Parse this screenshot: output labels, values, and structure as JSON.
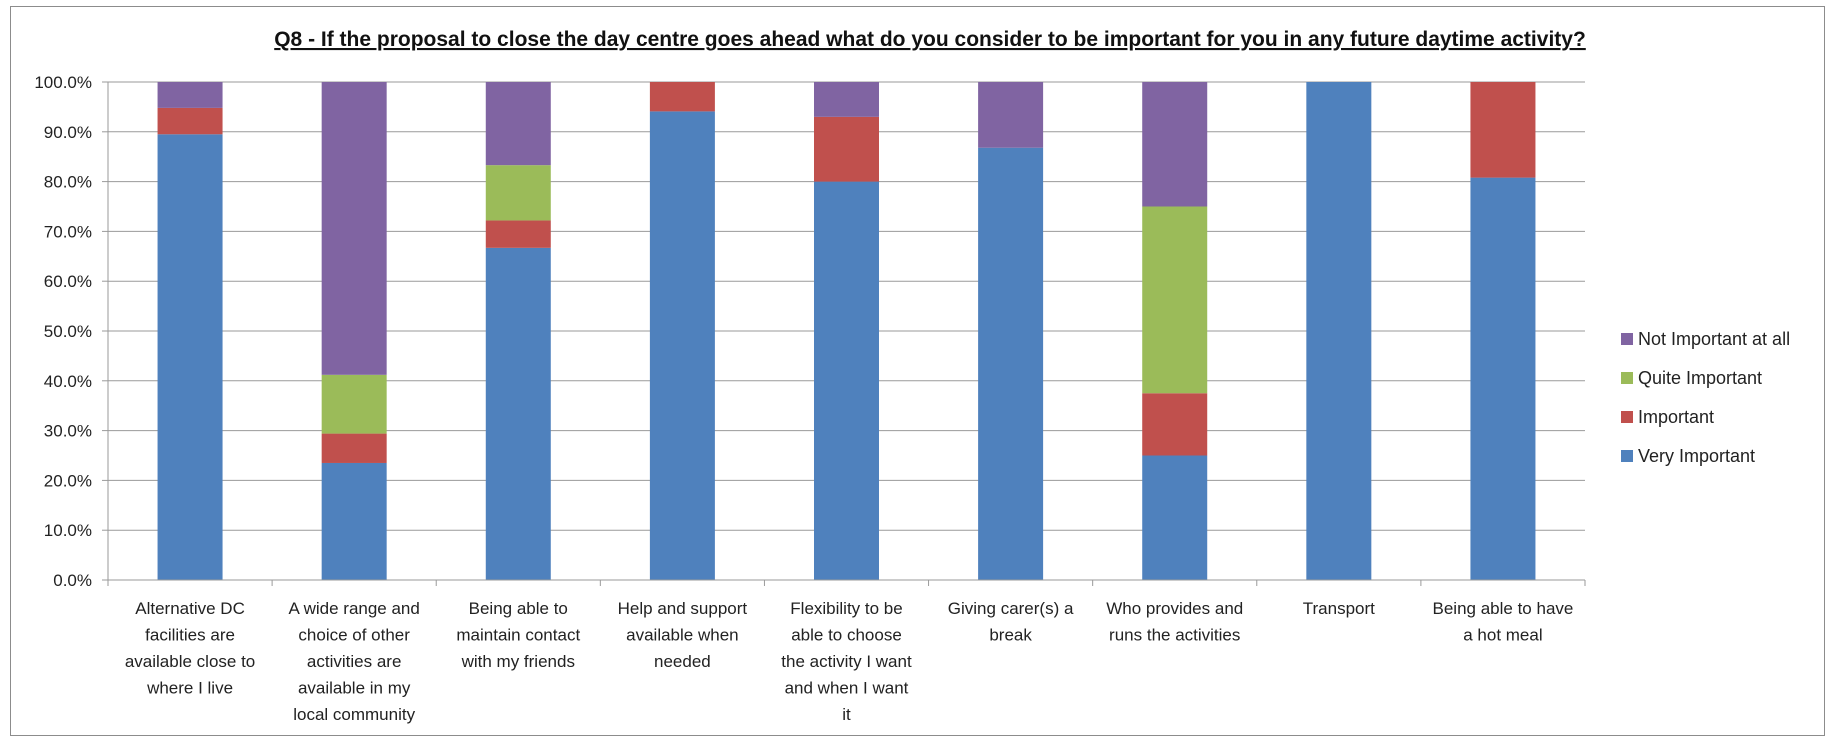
{
  "chart_data": {
    "type": "bar",
    "stacked": true,
    "title": "Q8 - If the proposal to close the day centre goes ahead what do you consider to be important for you in any future daytime activity?",
    "categories": [
      "Alternative DC facilities are available close to where I live",
      "A wide range and choice of other activities are available in my local community",
      "Being able to maintain contact with my friends",
      "Help and support available when needed",
      "Flexibility to be able to choose the activity I want and when I want it",
      "Giving carer(s) a break",
      "Who provides and runs the activities",
      "Transport",
      "Being able to have a hot meal"
    ],
    "category_lines": [
      [
        "Alternative DC",
        "facilities are",
        "available close to",
        "where I live"
      ],
      [
        "A wide range and",
        "choice of other",
        "activities are",
        "available in my",
        "local community"
      ],
      [
        "Being able to",
        "maintain contact",
        "with my friends"
      ],
      [
        "Help and support",
        "available when",
        "needed"
      ],
      [
        "Flexibility to be",
        "able to choose",
        "the activity I want",
        "and when I want",
        "it"
      ],
      [
        "Giving carer(s) a",
        "break"
      ],
      [
        "Who provides and",
        "runs the activities"
      ],
      [
        "Transport"
      ],
      [
        "Being able to have",
        "a hot meal"
      ]
    ],
    "series": [
      {
        "name": "Very Important",
        "color": "#4f81bd",
        "values": [
          89.5,
          23.5,
          66.7,
          94.1,
          80.0,
          86.8,
          25.0,
          100.0,
          80.8
        ]
      },
      {
        "name": "Important",
        "color": "#c0504d",
        "values": [
          5.3,
          5.9,
          5.5,
          5.9,
          13.0,
          0.0,
          12.5,
          0.0,
          19.2
        ]
      },
      {
        "name": "Quite Important",
        "color": "#9bbb59",
        "values": [
          0.0,
          11.8,
          11.1,
          0.0,
          0.0,
          0.0,
          37.5,
          0.0,
          0.0
        ]
      },
      {
        "name": "Not Important at all",
        "color": "#8064a2",
        "values": [
          5.2,
          58.8,
          16.7,
          0.0,
          7.0,
          13.2,
          25.0,
          0.0,
          0.0
        ]
      }
    ],
    "y_ticks": [
      "0.0%",
      "10.0%",
      "20.0%",
      "30.0%",
      "40.0%",
      "50.0%",
      "60.0%",
      "70.0%",
      "80.0%",
      "90.0%",
      "100.0%"
    ],
    "ylim": [
      0,
      100
    ],
    "grid": true,
    "legend_position": "right",
    "legend_order": [
      "Not Important at all",
      "Quite Important",
      "Important",
      "Very Important"
    ]
  }
}
